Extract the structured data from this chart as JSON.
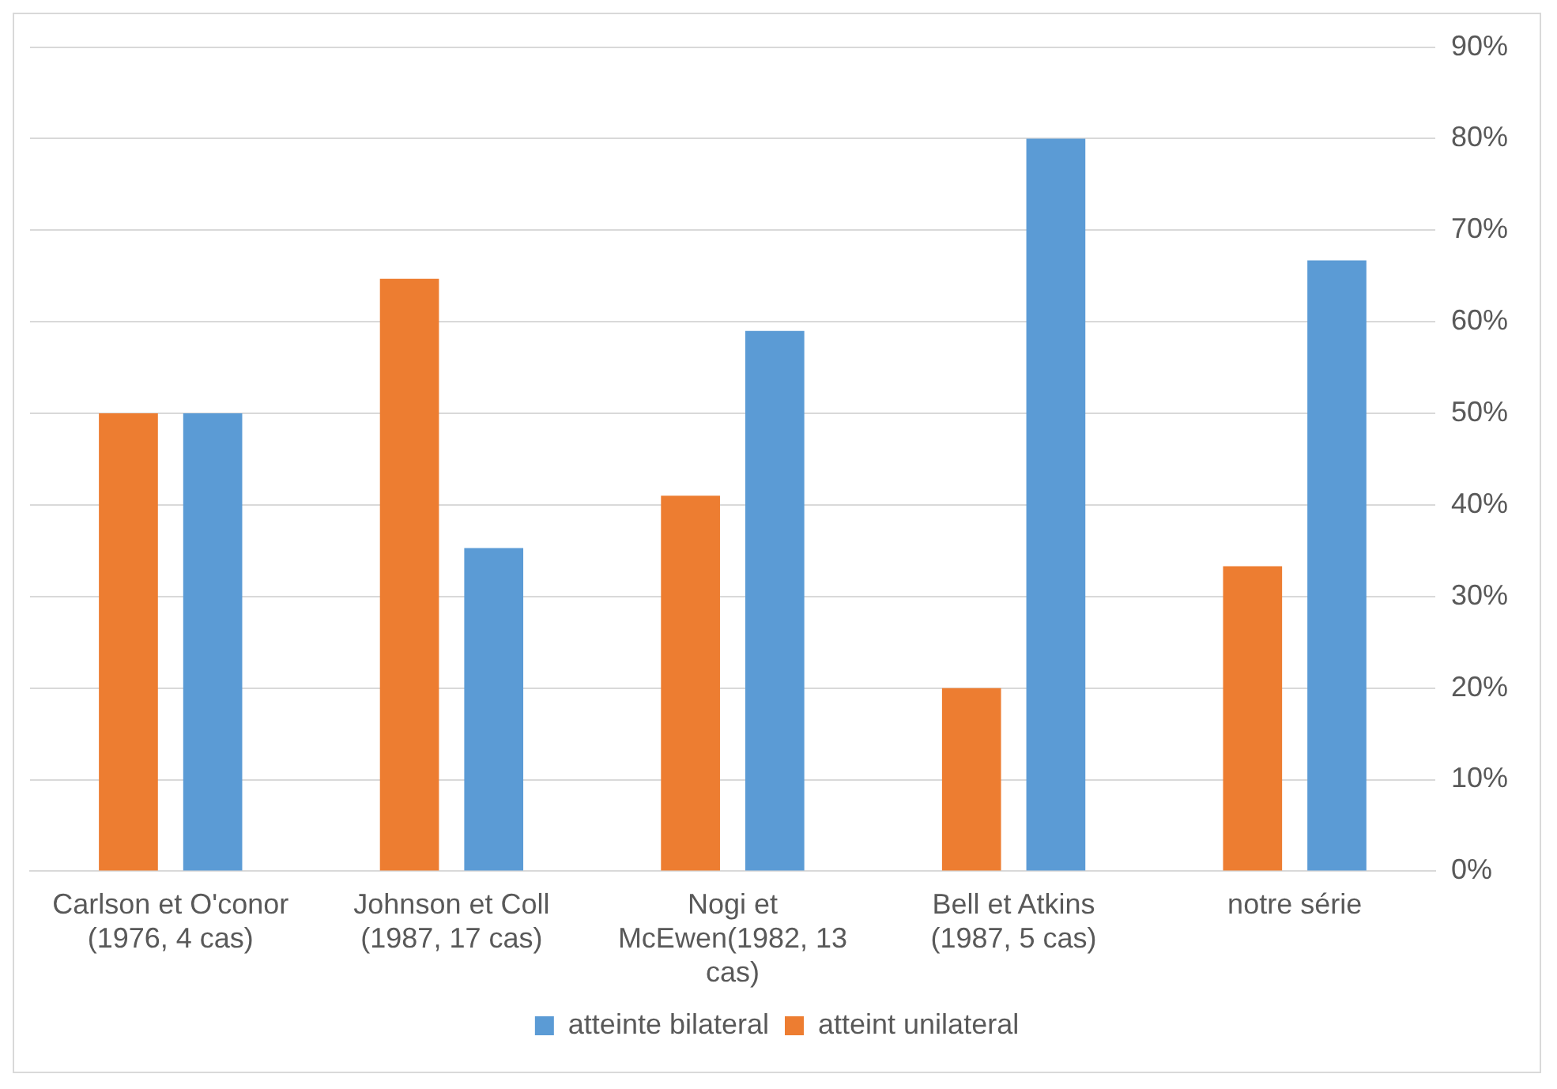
{
  "chart_data": {
    "type": "bar",
    "categories": [
      "Carlson et O'conor (1976, 4 cas)",
      "Johnson et Coll (1987, 17 cas)",
      "Nogi et McEwen(1982, 13 cas)",
      "Bell et Atkins (1987, 5 cas)",
      "notre série"
    ],
    "series": [
      {
        "name": "atteint unilateral",
        "color": "#ed7d31",
        "values": [
          50,
          64.7,
          41,
          20,
          33.3
        ]
      },
      {
        "name": "atteinte bilateral",
        "color": "#5b9bd5",
        "values": [
          50,
          35.3,
          59,
          80,
          66.7
        ]
      }
    ],
    "ylim": [
      0,
      90
    ],
    "yticks": [
      {
        "value": 0,
        "label": "0%"
      },
      {
        "value": 10,
        "label": "10%"
      },
      {
        "value": 20,
        "label": "20%"
      },
      {
        "value": 30,
        "label": "30%"
      },
      {
        "value": 40,
        "label": "40%"
      },
      {
        "value": 50,
        "label": "50%"
      },
      {
        "value": 60,
        "label": "60%"
      },
      {
        "value": 70,
        "label": "70%"
      },
      {
        "value": 80,
        "label": "80%"
      },
      {
        "value": 90,
        "label": "90%"
      }
    ],
    "grid": "y",
    "legend": "bottom"
  }
}
